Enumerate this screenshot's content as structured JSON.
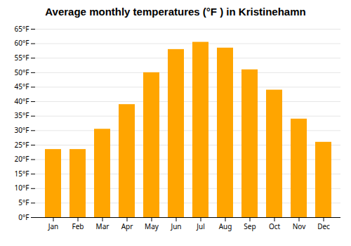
{
  "chart_data": {
    "type": "bar",
    "title": "Average monthly temperatures (°F ) in Kristinehamn",
    "categories": [
      "Jan",
      "Feb",
      "Mar",
      "Apr",
      "May",
      "Jun",
      "Jul",
      "Aug",
      "Sep",
      "Oct",
      "Nov",
      "Dec"
    ],
    "values": [
      23.5,
      23.5,
      30.5,
      39.0,
      50.0,
      58.0,
      60.5,
      58.5,
      51.0,
      44.0,
      34.0,
      26.0
    ],
    "color": "#FFA500",
    "ylim": [
      0,
      65
    ],
    "yticks": [
      {
        "value": 0,
        "label": "0°F"
      },
      {
        "value": 5,
        "label": "5°F"
      },
      {
        "value": 10,
        "label": "10°F"
      },
      {
        "value": 15,
        "label": "15°F"
      },
      {
        "value": 20,
        "label": "20°F"
      },
      {
        "value": 25,
        "label": "25°F"
      },
      {
        "value": 30,
        "label": "30°F"
      },
      {
        "value": 35,
        "label": "35°F"
      },
      {
        "value": 40,
        "label": "40°F"
      },
      {
        "value": 45,
        "label": "45°F"
      },
      {
        "value": 50,
        "label": "50°F"
      },
      {
        "value": 55,
        "label": "55°F"
      },
      {
        "value": 60,
        "label": "60°F"
      },
      {
        "value": 65,
        "label": "65°F"
      }
    ],
    "grid": true
  }
}
